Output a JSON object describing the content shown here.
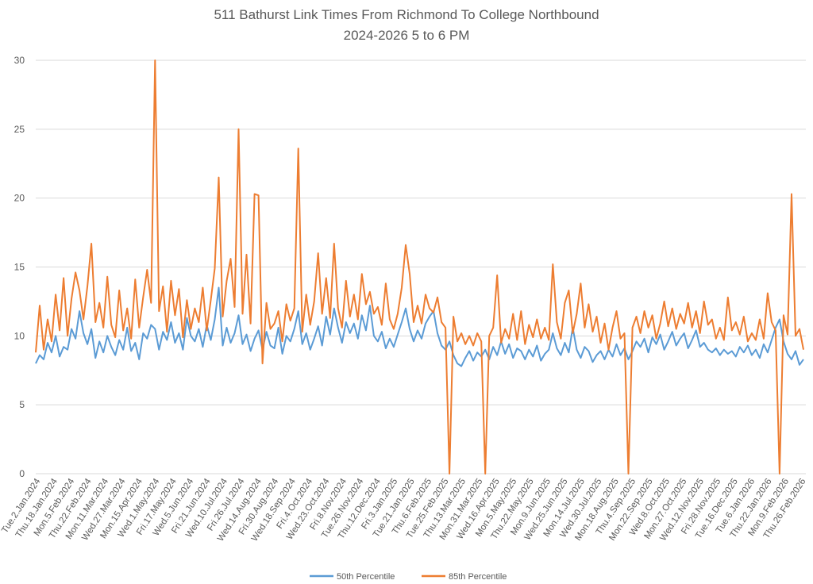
{
  "chart_data": {
    "type": "line",
    "title": [
      "511 Bathurst Link Times From Richmond To College Northbound",
      "2024-2026 5 to 6 PM"
    ],
    "xlabel": "",
    "ylabel": "",
    "ylim": [
      0,
      30
    ],
    "yticks": [
      0,
      5,
      10,
      15,
      20,
      25,
      30
    ],
    "grid": true,
    "legend_position": "bottom",
    "x_tick_labels": [
      "Tue.2.Jan.2024",
      "Thu.18.Jan.2024",
      "Mon.5.Feb.2024",
      "Thu.22.Feb.2024",
      "Mon.11.Mar.2024",
      "Wed.27.Mar.2024",
      "Mon.15.Apr.2024",
      "Wed.1.May.2024",
      "Fri.17.May.2024",
      "Wed.5.Jun.2024",
      "Fri.21.Jun.2024",
      "Wed.10.Jul.2024",
      "Fri.26.Jul.2024",
      "Wed.14.Aug.2024",
      "Fri.30.Aug.2024",
      "Wed.18.Sep.2024",
      "Fri.4.Oct.2024",
      "Wed.23.Oct.2024",
      "Fri.8.Nov.2024",
      "Tue.26.Nov.2024",
      "Thu.12.Dec.2024",
      "Fri.3.Jan.2025",
      "Tue.21.Jan.2025",
      "Thu.6.Feb.2025",
      "Tue.25.Feb.2025",
      "Thu.13.Mar.2025",
      "Mon.31.Mar.2025",
      "Wed.16.Apr.2025",
      "Mon.5.May.2025",
      "Thu.22.May.2025",
      "Mon.9.Jun.2025",
      "Wed.25.Jun.2025",
      "Mon.14.Jul.2025",
      "Wed.30.Jul.2025",
      "Mon.18.Aug.2025",
      "Thu.4.Sep.2025",
      "Mon.22.Sep.2025",
      "Wed.8.Oct.2025",
      "Mon.27.Oct.2025",
      "Wed.12.Nov.2025",
      "Fri.28.Nov.2025",
      "Tue.16.Dec.2025",
      "Tue.6.Jan.2026",
      "Thu.22.Jan.2026",
      "Mon.9.Feb.2026",
      "Thu.26.Feb.2026"
    ],
    "series": [
      {
        "name": "50th Percentile",
        "color": "#5b9bd5",
        "values": [
          8.0,
          8.6,
          8.3,
          9.5,
          8.8,
          10.0,
          8.5,
          9.2,
          9.0,
          10.5,
          9.8,
          11.8,
          10.2,
          9.4,
          10.5,
          8.4,
          9.6,
          8.8,
          10.0,
          9.2,
          8.6,
          9.7,
          9.0,
          10.6,
          8.9,
          9.5,
          8.3,
          10.2,
          9.8,
          10.8,
          10.5,
          9.0,
          10.3,
          9.7,
          11.0,
          9.5,
          10.2,
          9.0,
          11.3,
          10.0,
          9.6,
          10.5,
          9.2,
          10.8,
          9.7,
          11.2,
          13.5,
          9.3,
          10.6,
          9.5,
          10.2,
          11.5,
          9.4,
          10.1,
          8.9,
          9.8,
          10.4,
          9.0,
          10.3,
          9.3,
          9.1,
          10.6,
          8.7,
          10.0,
          9.6,
          10.5,
          11.8,
          9.4,
          10.2,
          9.0,
          9.8,
          10.7,
          9.3,
          11.4,
          10.1,
          12.0,
          10.6,
          9.5,
          11.0,
          10.2,
          10.9,
          9.8,
          11.5,
          10.4,
          12.2,
          10.0,
          9.6,
          10.3,
          9.1,
          9.8,
          9.2,
          10.1,
          11.0,
          12.0,
          10.5,
          9.6,
          10.4,
          9.8,
          10.9,
          11.4,
          11.8,
          10.2,
          9.3,
          9.0,
          9.6,
          8.6,
          8.0,
          7.8,
          8.4,
          8.9,
          8.2,
          8.8,
          8.5,
          9.0,
          8.3,
          9.2,
          8.6,
          9.6,
          8.7,
          9.4,
          8.4,
          9.1,
          8.9,
          8.3,
          9.0,
          8.5,
          9.3,
          8.2,
          8.7,
          9.0,
          10.2,
          9.1,
          8.6,
          9.5,
          8.8,
          10.6,
          9.0,
          8.4,
          9.2,
          8.9,
          8.1,
          8.6,
          8.9,
          8.3,
          9.0,
          8.5,
          9.4,
          8.6,
          9.1,
          8.3,
          8.9,
          9.6,
          9.2,
          9.8,
          8.8,
          9.9,
          9.4,
          10.1,
          9.0,
          9.6,
          10.3,
          9.3,
          9.8,
          10.2,
          9.1,
          9.7,
          10.4,
          9.2,
          9.5,
          9.0,
          8.8,
          9.1,
          8.6,
          9.0,
          8.7,
          8.9,
          8.5,
          9.2,
          8.8,
          9.3,
          8.6,
          9.0,
          8.4,
          9.4,
          8.8,
          9.7,
          10.6,
          11.2,
          9.6,
          8.7,
          8.3,
          8.9,
          7.9,
          8.3
        ]
      },
      {
        "name": "85th Percentile",
        "color": "#ed7d31",
        "values": [
          8.8,
          12.2,
          9.0,
          11.2,
          9.6,
          13.0,
          10.4,
          14.2,
          10.0,
          12.7,
          14.6,
          13.3,
          11.2,
          13.6,
          16.7,
          11.0,
          12.4,
          10.6,
          14.3,
          10.8,
          9.9,
          13.3,
          10.4,
          12.0,
          9.8,
          14.1,
          10.6,
          12.8,
          14.8,
          12.4,
          30,
          11.8,
          13.6,
          10.3,
          14.0,
          11.5,
          13.4,
          9.9,
          12.6,
          10.5,
          12.0,
          11.0,
          13.5,
          10.4,
          12.6,
          14.9,
          21.5,
          11.4,
          14.0,
          15.6,
          12.1,
          25.0,
          11.6,
          15.9,
          10.9,
          20.3,
          20.2,
          8.0,
          12.4,
          10.5,
          10.9,
          11.8,
          9.6,
          12.3,
          11.1,
          12.0,
          23.6,
          10.3,
          13.0,
          10.8,
          12.5,
          16.0,
          11.6,
          14.2,
          11.3,
          16.7,
          12.0,
          10.6,
          14.0,
          11.4,
          13.0,
          11.2,
          14.5,
          12.3,
          13.2,
          11.6,
          12.1,
          10.8,
          13.8,
          11.2,
          10.5,
          11.6,
          13.5,
          16.6,
          14.5,
          11.0,
          12.2,
          10.9,
          13.0,
          12.0,
          11.7,
          12.8,
          11.0,
          10.6,
          0,
          11.4,
          9.6,
          10.2,
          9.4,
          10.0,
          9.3,
          10.2,
          9.6,
          0,
          10.0,
          10.6,
          14.4,
          9.5,
          10.5,
          9.8,
          11.6,
          9.7,
          11.8,
          9.4,
          10.8,
          9.9,
          11.2,
          9.8,
          10.6,
          9.7,
          15.2,
          11.0,
          9.8,
          12.4,
          13.3,
          10.2,
          11.6,
          13.8,
          10.6,
          12.3,
          10.3,
          11.4,
          9.5,
          10.9,
          9.0,
          10.6,
          11.8,
          9.8,
          10.2,
          0,
          10.6,
          11.4,
          10.2,
          11.8,
          10.6,
          11.5,
          9.8,
          10.9,
          12.5,
          10.7,
          12.0,
          10.5,
          11.6,
          10.9,
          12.4,
          10.6,
          11.8,
          10.2,
          12.5,
          10.8,
          11.2,
          9.8,
          10.6,
          9.7,
          12.8,
          10.4,
          11.0,
          10.1,
          11.4,
          9.6,
          10.2,
          9.7,
          11.2,
          9.8,
          13.1,
          11.0,
          10.4,
          0,
          11.5,
          10.1,
          20.3,
          10.0,
          10.5,
          9.0
        ]
      }
    ]
  }
}
